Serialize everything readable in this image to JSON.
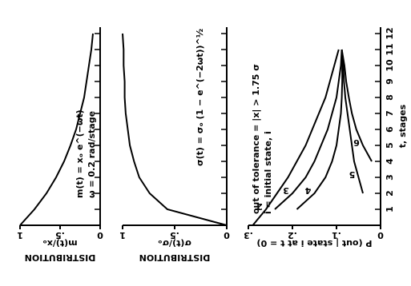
{
  "chart_data": [
    {
      "type": "line",
      "title": "m(t) = xₒ e^(−ωt)",
      "subtitle": "ω = 0.2 rad/stage",
      "ylabel": "m(t)/xₒ",
      "group_label": "DISTRIBUTION",
      "x": [
        0,
        1,
        2,
        3,
        4,
        5,
        6,
        7,
        8,
        9,
        10,
        11,
        12
      ],
      "xlim": [
        0,
        12
      ],
      "series": [
        {
          "name": "m(t)/xₒ",
          "color": "#000000",
          "values": [
            1,
            0.82,
            0.67,
            0.55,
            0.45,
            0.37,
            0.3,
            0.25,
            0.2,
            0.17,
            0.14,
            0.11,
            0.09
          ]
        }
      ],
      "ylim": [
        0,
        1
      ],
      "yticks": [
        0,
        {
          "value": 0.5,
          "label": ".5"
        },
        1
      ]
    },
    {
      "type": "line",
      "title": "σ(t) = σₒ (1 − e^(−2ωt))^½",
      "ylabel": "σ(t)/σₒ",
      "group_label": "DISTRIBUTION",
      "x": [
        0,
        1,
        2,
        3,
        4,
        5,
        6,
        7,
        8,
        9,
        10,
        11,
        12
      ],
      "xlim": [
        0,
        12
      ],
      "series": [
        {
          "name": "σ(t)/σₒ",
          "color": "#000000",
          "values": [
            0,
            0.57,
            0.74,
            0.84,
            0.89,
            0.93,
            0.95,
            0.97,
            0.98,
            0.98,
            0.99,
            0.99,
            1
          ]
        }
      ],
      "ylim": [
        0,
        1
      ],
      "yticks": [
        0,
        {
          "value": 0.5,
          "label": ".5"
        },
        1
      ]
    },
    {
      "type": "line",
      "title": "out of tolerance = |x| > 1.75 σ",
      "subtitle": "i = initial state, i",
      "ylabel": "P (out | state i at t = 0)",
      "xlabel": "t, stages",
      "x": [
        0,
        1,
        2,
        3,
        4,
        5,
        6,
        7,
        8,
        9,
        10,
        11,
        12
      ],
      "xlim": [
        0,
        12
      ],
      "xticks": [
        1,
        2,
        3,
        4,
        5,
        6,
        7,
        8,
        9,
        10,
        11,
        12
      ],
      "series": [
        {
          "name": "2",
          "color": "#000000",
          "values": [
            0.29,
            0.26,
            0.235,
            0.21,
            0.19,
            0.17,
            0.155,
            0.14,
            0.125,
            0.115,
            0.105,
            0.095,
            null
          ]
        },
        {
          "name": "3",
          "color": "#000000",
          "values": [
            null,
            0.24,
            0.2,
            0.17,
            0.15,
            0.135,
            0.12,
            0.11,
            0.1,
            0.095,
            0.09,
            0.088,
            null
          ]
        },
        {
          "name": "4",
          "color": "#000000",
          "values": [
            null,
            0.19,
            0.15,
            0.125,
            0.11,
            0.1,
            0.095,
            0.09,
            0.088,
            0.087,
            0.087,
            0.088,
            null
          ]
        },
        {
          "name": "5",
          "color": "#000000",
          "values": [
            null,
            null,
            0.04,
            0.05,
            0.06,
            0.065,
            0.07,
            0.075,
            0.08,
            0.083,
            0.085,
            0.088,
            null
          ]
        },
        {
          "name": "6",
          "color": "#000000",
          "values": [
            null,
            null,
            null,
            null,
            0.02,
            0.04,
            0.055,
            0.065,
            0.072,
            0.078,
            0.082,
            0.088,
            null
          ]
        }
      ],
      "ylim": [
        0,
        0.3
      ],
      "yticks": [
        0,
        {
          "value": 0.1,
          "label": ".1"
        },
        {
          "value": 0.2,
          "label": ".2"
        },
        {
          "value": 0.3,
          "label": ".3"
        }
      ]
    }
  ]
}
